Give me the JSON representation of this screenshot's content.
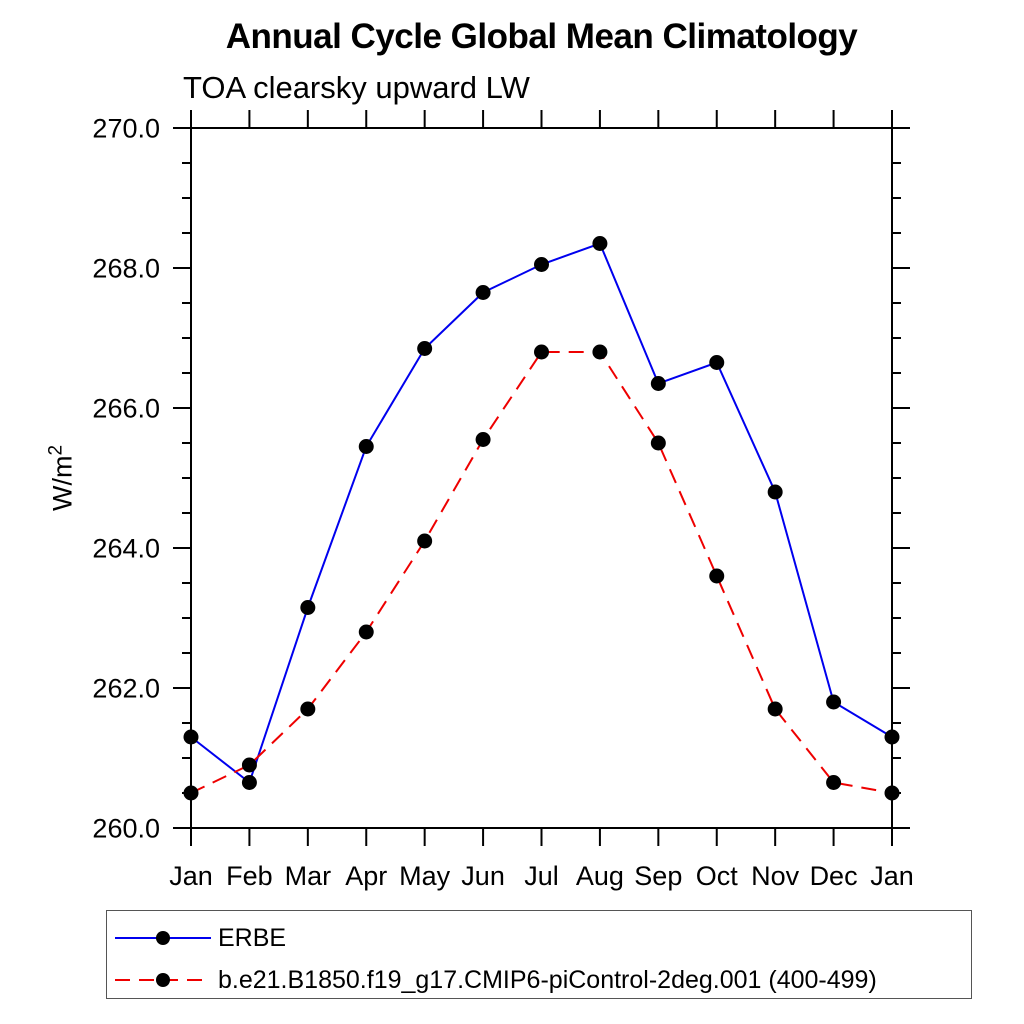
{
  "header": {
    "title": "Annual Cycle Global Mean Climatology",
    "subtitle": "TOA clearsky upward LW"
  },
  "y_axis": {
    "label_base": "W/m",
    "label_sup": "2",
    "tick_labels": [
      "260.0",
      "262.0",
      "264.0",
      "266.0",
      "268.0",
      "270.0"
    ]
  },
  "x_axis": {
    "tick_labels": [
      "Jan",
      "Feb",
      "Mar",
      "Apr",
      "May",
      "Jun",
      "Jul",
      "Aug",
      "Sep",
      "Oct",
      "Nov",
      "Dec",
      "Jan"
    ]
  },
  "chart_data": {
    "type": "line",
    "title": "Annual Cycle Global Mean Climatology",
    "subtitle": "TOA clearsky upward LW",
    "ylabel": "W/m^2",
    "xlabel": "",
    "categories": [
      "Jan",
      "Feb",
      "Mar",
      "Apr",
      "May",
      "Jun",
      "Jul",
      "Aug",
      "Sep",
      "Oct",
      "Nov",
      "Dec",
      "Jan"
    ],
    "ylim": [
      260.0,
      270.0
    ],
    "ytick_major_step": 2.0,
    "ytick_minor_step": 0.5,
    "grid": false,
    "legend_position": "bottom-left-box",
    "marker": "filled-circle",
    "marker_color": "#000000",
    "series": [
      {
        "name": "ERBE",
        "color": "#0000ee",
        "line_style": "solid",
        "values": [
          261.3,
          260.65,
          263.15,
          265.45,
          266.85,
          267.65,
          268.05,
          268.35,
          266.35,
          266.65,
          264.8,
          261.8,
          261.3
        ]
      },
      {
        "name": "b.e21.B1850.f19_g17.CMIP6-piControl-2deg.001 (400-499)",
        "color": "#ee0000",
        "line_style": "dashed",
        "values": [
          260.5,
          260.9,
          261.7,
          262.8,
          264.1,
          265.55,
          266.8,
          266.8,
          265.5,
          263.6,
          261.7,
          260.65,
          260.5
        ]
      }
    ]
  },
  "legend": {
    "entries": [
      {
        "label": "ERBE",
        "color": "#0000ee",
        "dash": "none",
        "marker_color": "#000000"
      },
      {
        "label": "b.e21.B1850.f19_g17.CMIP6-piControl-2deg.001 (400-499)",
        "color": "#ee0000",
        "dash": "15 9",
        "marker_color": "#000000"
      }
    ]
  }
}
